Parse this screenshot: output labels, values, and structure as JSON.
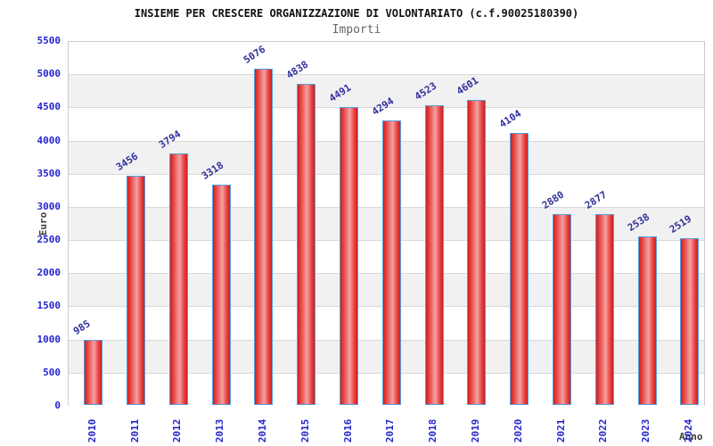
{
  "chart_data": {
    "type": "bar",
    "title": "INSIEME PER CRESCERE ORGANIZZAZIONE DI VOLONTARIATO (c.f.90025180390)",
    "subtitle": "Importi",
    "xlabel": "Anno",
    "ylabel": "Euro",
    "categories": [
      "2010",
      "2011",
      "2012",
      "2013",
      "2014",
      "2015",
      "2016",
      "2017",
      "2018",
      "2019",
      "2020",
      "2021",
      "2022",
      "2023",
      "2024"
    ],
    "values": [
      985,
      3456,
      3794,
      3318,
      5076,
      4838,
      4491,
      4294,
      4523,
      4601,
      4104,
      2880,
      2877,
      2538,
      2519
    ],
    "ylim": [
      0,
      5500
    ],
    "ytick_step": 500,
    "grid": true,
    "legend": "none",
    "value_labels_shown": true,
    "colors": {
      "title": "#111111",
      "subtitle": "#666666",
      "bar_fill_dark": "#c92020",
      "bar_fill_mid": "#ea4040",
      "bar_fill_light": "#f2a2a2",
      "bar_border": "#55a0e0",
      "value_label": "#30309a",
      "tick_label": "#2424cc",
      "axis_title": "#3c3c3c",
      "band_white": "#ffffff",
      "band_gray": "#f1f1f2",
      "gridline": "#d9d9d9",
      "plot_border": "#cccccc"
    }
  }
}
